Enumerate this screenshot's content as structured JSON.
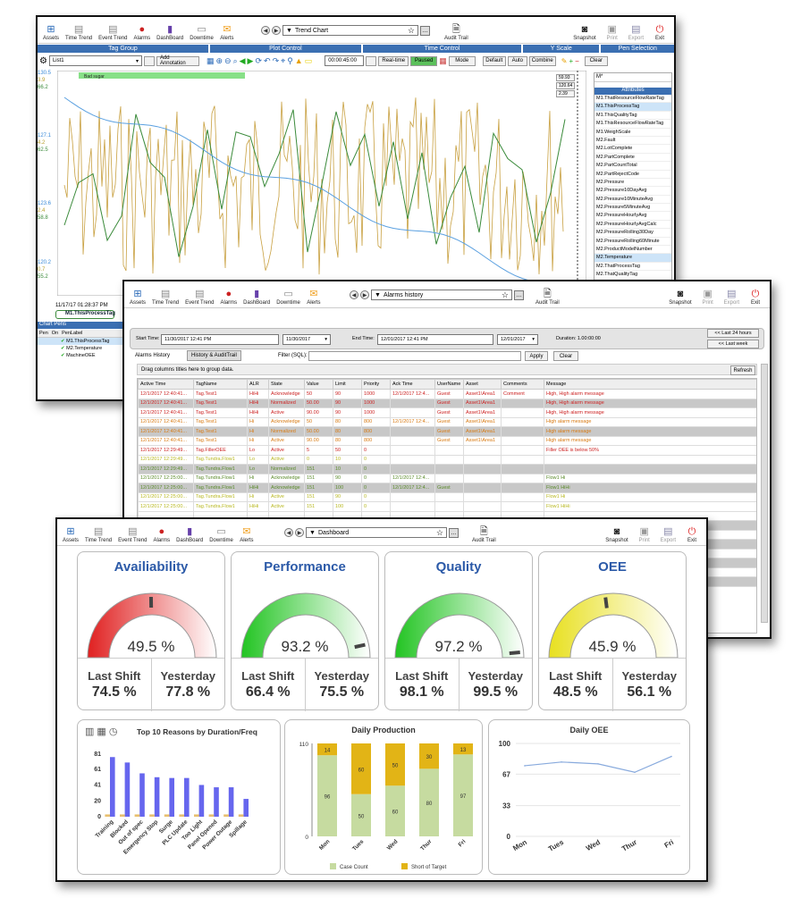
{
  "toolbar": {
    "assets": "Assets",
    "time_trend": "Time Trend",
    "event_trend": "Event Trend",
    "alarms": "Alarms",
    "dashboard": "DashBoard",
    "downtime": "Downtime",
    "alerts": "Alerts",
    "audit_trail": "Audit Trail",
    "snapshot": "Snapshot",
    "print": "Print",
    "export": "Export",
    "exit": "Exit"
  },
  "trend": {
    "selector": "Trend Chart",
    "sections": [
      "Tag Group",
      "Plot Control",
      "Time Control",
      "Y Scale",
      "Pen Selection"
    ],
    "tag_group_value": "List1",
    "add_annotation": "Add Annotation",
    "time_value": "00:00:45:00",
    "realtime": "Real-time",
    "paused": "Paused",
    "mode": "Mode",
    "yscale": [
      "Default",
      "Auto",
      "Combine"
    ],
    "clear": "Clear",
    "y_left_top": [
      "130.5",
      "3.9",
      "66.2"
    ],
    "y_left_mid": [
      "127.1",
      "4.2",
      "62.5"
    ],
    "y_left_low": [
      "123.6",
      "2.4",
      "58.8"
    ],
    "y_left_bot": [
      "120.2",
      "0.7",
      "55.2"
    ],
    "band_label": "Bad sugar",
    "cursor_values": [
      "59.93",
      "120.64",
      "2.39"
    ],
    "timestamp": "11/17/17 01:28:37 PM",
    "active_pen": "M1.ThisProcessTag",
    "chart_pens": "Chart Pens",
    "pens_headers": [
      "Pen",
      "On",
      "PenLabel"
    ],
    "pens": [
      "M1.ThisProcessTag",
      "M2.Temperature",
      "MachineOEE"
    ],
    "search_value": "M*",
    "attributes_header": "Attributes",
    "attributes": [
      "M1.ThatResourceFlowRateTag",
      "M1.ThisProcessTag",
      "M1.ThisQualityTag",
      "M1.ThisResourceFlowRateTag",
      "M1.WeighScale",
      "M2.Fault",
      "M2.LotComplete",
      "M2.PartComplete",
      "M2.PartCountTotal",
      "M2.PartRejectCode",
      "M2.Pressure",
      "M2.Pressure10DayAvg",
      "M2.Pressure10MinuteAvg",
      "M2.Pressure5MinuteAvg",
      "M2.PressureHourlyAvg",
      "M2.PressureHourlyAvgCalc",
      "M2.PressureRolling30Day",
      "M2.PressureRolling60Minute",
      "M2.ProductModelNumber",
      "M2.Temperature",
      "M2.ThatProcessTag",
      "M2.ThatQualityTag",
      "M2.ThatResourceFlowRateTag",
      "M2.ThisProcessTag"
    ]
  },
  "alarms": {
    "selector": "Alarms history",
    "start_label": "Start Time:",
    "start_value": "11/30/2017 12:41 PM",
    "start_date": "11/30/2017",
    "end_label": "End Time:",
    "end_value": "12/01/2017 12:41 PM",
    "end_date": "12/01/2017",
    "duration": "Duration: 1.00:00:00",
    "last24": "<< Last 24 hours",
    "lastweek": "<< Last week",
    "tab1": "Alarms History",
    "tab2": "History & AuditTrail",
    "filter_label": "Filter (SQL):",
    "apply": "Apply",
    "clear": "Clear",
    "group_hint": "Drag columns titles here to group data.",
    "refresh": "Refresh",
    "headers": [
      "Active Time",
      "TagName",
      "ALR",
      "State",
      "Value",
      "Limit",
      "Priority",
      "Ack Time",
      "UserName",
      "Asset",
      "Comments",
      "Message"
    ],
    "rows": [
      [
        "12/1/2017 12:40:41...",
        "Tag.Test1",
        "HiHi",
        "Acknowledge",
        "50",
        "90",
        "1000",
        "12/1/2017 12:4...",
        "Guest",
        "Asset1\\Area1",
        "Comment",
        "High, High alarm message"
      ],
      [
        "12/1/2017 12:40:41...",
        "Tag.Test1",
        "HiHi",
        "Normalized",
        "50.00",
        "90",
        "1000",
        "",
        "Guest",
        "Asset1\\Area1",
        "",
        "High, High alarm message"
      ],
      [
        "12/1/2017 12:40:41...",
        "Tag.Test1",
        "HiHi",
        "Active",
        "90.00",
        "90",
        "1000",
        "",
        "Guest",
        "Asset1\\Area1",
        "",
        "High, High alarm message"
      ],
      [
        "12/1/2017 12:40:41...",
        "Tag.Test1",
        "Hi",
        "Acknowledge",
        "50",
        "80",
        "800",
        "12/1/2017 12:4...",
        "Guest",
        "Asset1\\Area1",
        "",
        "High alarm message"
      ],
      [
        "12/1/2017 12:40:41...",
        "Tag.Test1",
        "Hi",
        "Normalized",
        "50.00",
        "80",
        "800",
        "",
        "Guest",
        "Asset1\\Area1",
        "",
        "High alarm message"
      ],
      [
        "12/1/2017 12:40:41...",
        "Tag.Test1",
        "Hi",
        "Active",
        "90.00",
        "80",
        "800",
        "",
        "Guest",
        "Asset1\\Area1",
        "",
        "High alarm message"
      ],
      [
        "12/1/2017 12:29:49...",
        "Tag.FillerOEE",
        "Lo",
        "Active",
        "5",
        "50",
        "0",
        "",
        "",
        "",
        "",
        "Filler OEE is below 50%"
      ],
      [
        "12/1/2017 12:29:49...",
        "Tag.Tundra.Flow1",
        "Lo",
        "Active",
        "0",
        "10",
        "0",
        "",
        "",
        "",
        "",
        ""
      ],
      [
        "12/1/2017 12:29:49...",
        "Tag.Tundra.Flow1",
        "Lo",
        "Normalized",
        "151",
        "10",
        "0",
        "",
        "",
        "",
        "",
        ""
      ],
      [
        "12/1/2017 12:25:00...",
        "Tag.Tundra.Flow1",
        "Hi",
        "Acknowledge",
        "151",
        "90",
        "0",
        "12/1/2017 12:4...",
        "",
        "",
        "",
        "Flow1 Hi"
      ],
      [
        "12/1/2017 12:25:00...",
        "Tag.Tundra.Flow1",
        "HiHi",
        "Acknowledge",
        "151",
        "100",
        "0",
        "12/1/2017 12:4...",
        "Guest",
        "",
        "",
        "Flow1 HiHi"
      ],
      [
        "12/1/2017 12:25:00...",
        "Tag.Tundra.Flow1",
        "Hi",
        "Active",
        "151",
        "90",
        "0",
        "",
        "",
        "",
        "",
        "Flow1 Hi"
      ],
      [
        "12/1/2017 12:25:00...",
        "Tag.Tundra.Flow1",
        "HiHi",
        "Active",
        "151",
        "100",
        "0",
        "",
        "",
        "",
        "",
        "Flow1 HiHi"
      ]
    ],
    "row_colors": [
      "#cc2222",
      "#cc2222",
      "#cc2222",
      "#d87a12",
      "#d87a12",
      "#d87a12",
      "#cc2222",
      "#b8b820",
      "#5a8a2a",
      "#5a8a2a",
      "#5a8a2a",
      "#b8b820",
      "#b8b820"
    ],
    "row_bgs": [
      "#fff",
      "#c8c8c8",
      "#fff",
      "#fff",
      "#c8c8c8",
      "#fff",
      "#fff",
      "#fff",
      "#c8c8c8",
      "#fff",
      "#c8c8c8",
      "#fff",
      "#fff"
    ]
  },
  "dashboard": {
    "selector": "Dashboard",
    "gauges": [
      {
        "title": "Availiability",
        "value": "49.5 %",
        "pct": 49.5,
        "color": "#e02020",
        "last_shift_label": "Last Shift",
        "yesterday_label": "Yesterday",
        "last_shift": "74.5 %",
        "yesterday": "77.8 %"
      },
      {
        "title": "Performance",
        "value": "93.2 %",
        "pct": 93.2,
        "color": "#22c422",
        "last_shift_label": "Last Shift",
        "yesterday_label": "Yesterday",
        "last_shift": "66.4 %",
        "yesterday": "75.5 %"
      },
      {
        "title": "Quality",
        "value": "97.2 %",
        "pct": 97.2,
        "color": "#22c422",
        "last_shift_label": "Last Shift",
        "yesterday_label": "Yesterday",
        "last_shift": "98.1 %",
        "yesterday": "99.5 %"
      },
      {
        "title": "OEE",
        "value": "45.9 %",
        "pct": 45.9,
        "color": "#e8e020",
        "last_shift_label": "Last Shift",
        "yesterday_label": "Yesterday",
        "last_shift": "48.5 %",
        "yesterday": "56.1 %"
      }
    ]
  },
  "chart_data": [
    {
      "type": "bar",
      "title": "Top 10 Reasons by Duration/Freq",
      "categories": [
        "Training",
        "Blocked",
        "Out of spec",
        "Emergency Stop",
        "Surge",
        "PLC Update",
        "Too Light",
        "Panel Opened",
        "Power Outage",
        "Spillage"
      ],
      "series": [
        {
          "values": [
            77,
            70,
            56,
            51,
            50,
            50,
            41,
            38,
            38,
            23
          ]
        },
        {
          "values": [
            3,
            3,
            3,
            3,
            3,
            3,
            3,
            3,
            3,
            3
          ]
        }
      ],
      "yticks": [
        0,
        20,
        41,
        61,
        81
      ],
      "ylim": [
        0,
        90
      ],
      "colors": [
        "#6666ee",
        "#e8c070"
      ]
    },
    {
      "type": "bar",
      "title": "Daily Production",
      "categories": [
        "Mon",
        "Tues",
        "Wed",
        "Thur",
        "Fri"
      ],
      "series": [
        {
          "name": "Case Count",
          "values": [
            96,
            50,
            60,
            80,
            97
          ]
        },
        {
          "name": "Short of Target",
          "values": [
            14,
            60,
            50,
            30,
            13
          ]
        }
      ],
      "yticks": [
        0,
        110
      ],
      "ylim": [
        0,
        110
      ],
      "colors": [
        "#c6dba0",
        "#e2b416"
      ]
    },
    {
      "type": "line",
      "title": "Daily OEE",
      "categories": [
        "Mon",
        "Tues",
        "Wed",
        "Thur",
        "Fri"
      ],
      "values": [
        76,
        80,
        78,
        69,
        86
      ],
      "yticks": [
        0,
        33,
        67,
        100
      ],
      "ylim": [
        0,
        100
      ],
      "color": "#88aadd"
    }
  ]
}
